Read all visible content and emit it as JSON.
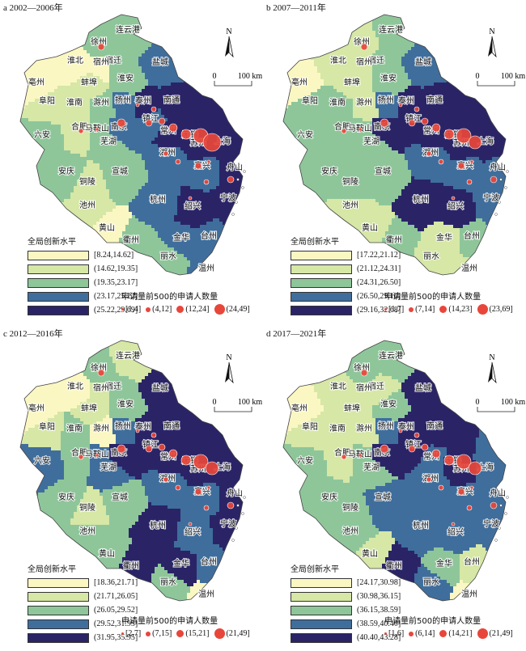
{
  "panels": [
    {
      "id": "a",
      "title": "a 2002—2006年",
      "legend_title": "全局创新水平",
      "classes": [
        "[8.24,14.62]",
        "(14.62,19.35]",
        "(19.35,23.17]",
        "(23.17,25.22]",
        "(25.22,29.69]"
      ],
      "bubble_title": "申请量前500的申请人数量",
      "bubbles": [
        "[1,4]",
        "(4,12]",
        "(12,24]",
        "(24,49]"
      ]
    },
    {
      "id": "b",
      "title": "b 2007—2011年",
      "legend_title": "全局创新水平",
      "classes": [
        "[17.22,21.12]",
        "(21.12,24.31]",
        "(24.31,26.50]",
        "(26.50,29.16]",
        "(29.16,32.68]"
      ],
      "bubble_title": "申请量前500的申请人数量",
      "bubbles": [
        "[1,7]",
        "(7,14]",
        "(14,23]",
        "(23,69]"
      ]
    },
    {
      "id": "c",
      "title": "c 2012—2016年",
      "legend_title": "全局创新水平",
      "classes": [
        "[18.36,21.71]",
        "(21.71,26.05]",
        "(26.05,29.52]",
        "(29.52,31.95]",
        "(31.95,35.95]"
      ],
      "bubble_title": "申请量前500的申请人数量",
      "bubbles": [
        "[2,7]",
        "(7,15]",
        "(15,21]",
        "(21,49]"
      ]
    },
    {
      "id": "d",
      "title": "d 2017—2021年",
      "legend_title": "全局创新水平",
      "classes": [
        "[24.17,30.98]",
        "(30.98,36.15]",
        "(36.15,38.59]",
        "(38.59,40.40]",
        "(40.40,43.28]"
      ],
      "bubble_title": "申请量前500的申请人数量",
      "bubbles": [
        "[1,6]",
        "(6,14]",
        "(14,21]",
        "(21,49]"
      ]
    }
  ],
  "north_label": "N",
  "scale_start": "0",
  "scale_end": "100 km",
  "colors": {
    "class": [
      "#fbf7c2",
      "#d6e7a6",
      "#8ec69a",
      "#3f6e9c",
      "#2a2467"
    ],
    "bubble": "#e8463b"
  },
  "cities": [
    "连云港",
    "徐州",
    "宿迁",
    "淮北",
    "宿州",
    "淮安",
    "盐城",
    "亳州",
    "蚌埠",
    "阜阳",
    "淮南",
    "滁州",
    "扬州",
    "泰州",
    "南通",
    "六安",
    "合肥",
    "南京",
    "镇江",
    "常州",
    "马鞍山",
    "无锡",
    "苏州",
    "芜湖",
    "上海",
    "安庆",
    "铜陵",
    "宣城",
    "湖州",
    "嘉兴",
    "池州",
    "黄山",
    "杭州",
    "绍兴",
    "宁波",
    "舟山",
    "衢州",
    "金华",
    "台州",
    "丽水",
    "温州"
  ],
  "city_classes": {
    "a": [
      2,
      2,
      2,
      0,
      0,
      2,
      3,
      0,
      1,
      1,
      1,
      2,
      3,
      4,
      4,
      2,
      1,
      3,
      3,
      4,
      2,
      4,
      4,
      2,
      4,
      2,
      1,
      2,
      3,
      3,
      1,
      0,
      3,
      4,
      4,
      4,
      2,
      3,
      3,
      2,
      3
    ],
    "b": [
      2,
      1,
      2,
      1,
      1,
      2,
      3,
      0,
      1,
      2,
      2,
      1,
      3,
      4,
      4,
      2,
      2,
      4,
      4,
      4,
      2,
      4,
      4,
      2,
      4,
      2,
      2,
      2,
      3,
      3,
      1,
      1,
      4,
      4,
      3,
      3,
      2,
      1,
      2,
      1,
      1
    ],
    "c": [
      1,
      2,
      2,
      0,
      1,
      2,
      4,
      0,
      1,
      1,
      2,
      0,
      3,
      4,
      4,
      3,
      2,
      4,
      4,
      4,
      3,
      4,
      4,
      3,
      4,
      2,
      1,
      2,
      3,
      3,
      2,
      2,
      4,
      3,
      4,
      4,
      4,
      4,
      3,
      2,
      0
    ],
    "d": [
      2,
      2,
      1,
      1,
      1,
      2,
      4,
      0,
      1,
      1,
      1,
      1,
      3,
      4,
      4,
      2,
      1,
      4,
      4,
      3,
      2,
      4,
      4,
      2,
      3,
      2,
      2,
      3,
      3,
      3,
      2,
      1,
      3,
      3,
      3,
      3,
      4,
      2,
      1,
      3,
      0
    ]
  }
}
